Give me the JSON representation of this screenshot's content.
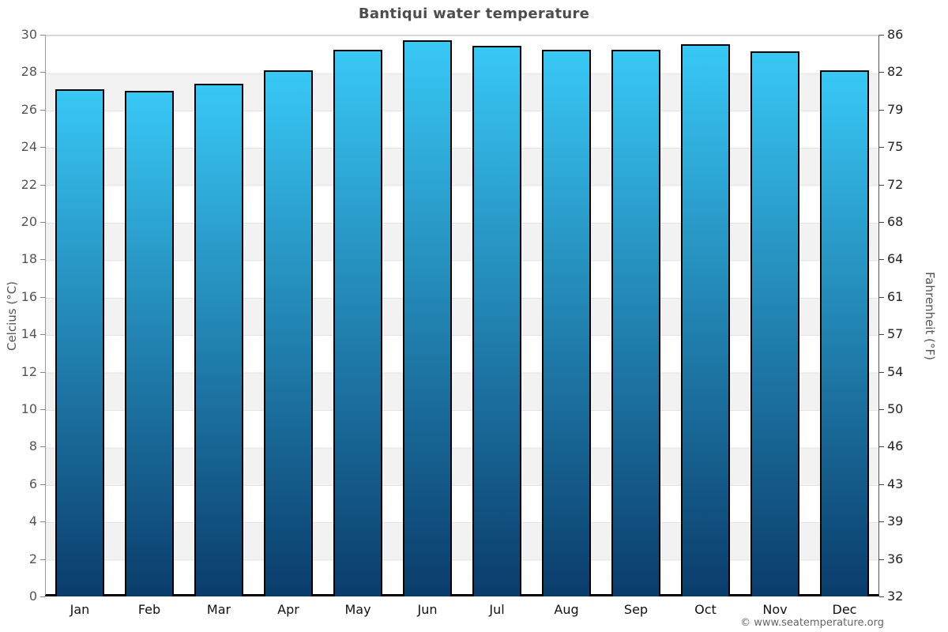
{
  "title": "Bantiqui water temperature",
  "footer": "© www.seatemperature.org",
  "chart_data": {
    "type": "bar",
    "title": "Bantiqui water temperature",
    "categories": [
      "Jan",
      "Feb",
      "Mar",
      "Apr",
      "May",
      "Jun",
      "Jul",
      "Aug",
      "Sep",
      "Oct",
      "Nov",
      "Dec"
    ],
    "values": [
      27.1,
      27.0,
      27.4,
      28.1,
      29.2,
      29.7,
      29.4,
      29.2,
      29.2,
      29.5,
      29.1,
      28.1
    ],
    "values_unit": "°C",
    "xlabel": "",
    "ylabel_left": "Celcius (°C)",
    "ylabel_right": "Fahrenheit (°F)",
    "ylim_left_celsius": [
      0,
      30
    ],
    "ylim_right_fahrenheit": [
      32,
      86
    ],
    "celsius_ticks": [
      30,
      28,
      26,
      24,
      22,
      20,
      18,
      16,
      14,
      12,
      10,
      8,
      6,
      4,
      2,
      0
    ],
    "fahrenheit_ticks": [
      86,
      82,
      79,
      75,
      72,
      68,
      64,
      61,
      57,
      54,
      50,
      46,
      43,
      39,
      36,
      32
    ],
    "grid": "alternating 2°C horizontal bands, white and light gray",
    "legend_position": "none",
    "colors": {
      "bar_top": "#38c8f5",
      "bar_bottom": "#0a3c6b",
      "bar_border": "#000000",
      "band": "#f2f2f2",
      "gridline": "#e3e3e3",
      "title_text": "#4d4d4d",
      "left_tick_text": "#555555",
      "right_tick_text": "#222222",
      "month_text": "#111111",
      "footer_text": "#666666"
    }
  }
}
